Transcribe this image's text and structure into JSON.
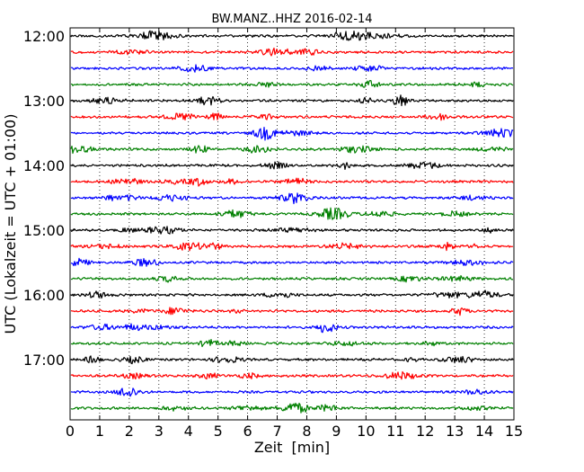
{
  "chart_data": {
    "type": "line",
    "title": "BW.MANZ..HHZ 2016-02-14",
    "xlabel": "Zeit  [min]",
    "ylabel": "UTC (Lokalzeit = UTC + 01:00)",
    "xlim": [
      0,
      15
    ],
    "x_ticks": [
      "0",
      "1",
      "2",
      "3",
      "4",
      "5",
      "6",
      "7",
      "8",
      "9",
      "10",
      "11",
      "12",
      "13",
      "14",
      "15"
    ],
    "y_ticks": [
      "12:00",
      "13:00",
      "14:00",
      "15:00",
      "16:00",
      "17:00"
    ],
    "trace_interval_minutes": 15,
    "start_time": "12:00",
    "trace_count": 24,
    "trace_colors": [
      "#000000",
      "#ff0000",
      "#0000ff",
      "#008000"
    ],
    "grid": "vertical-dotted"
  }
}
